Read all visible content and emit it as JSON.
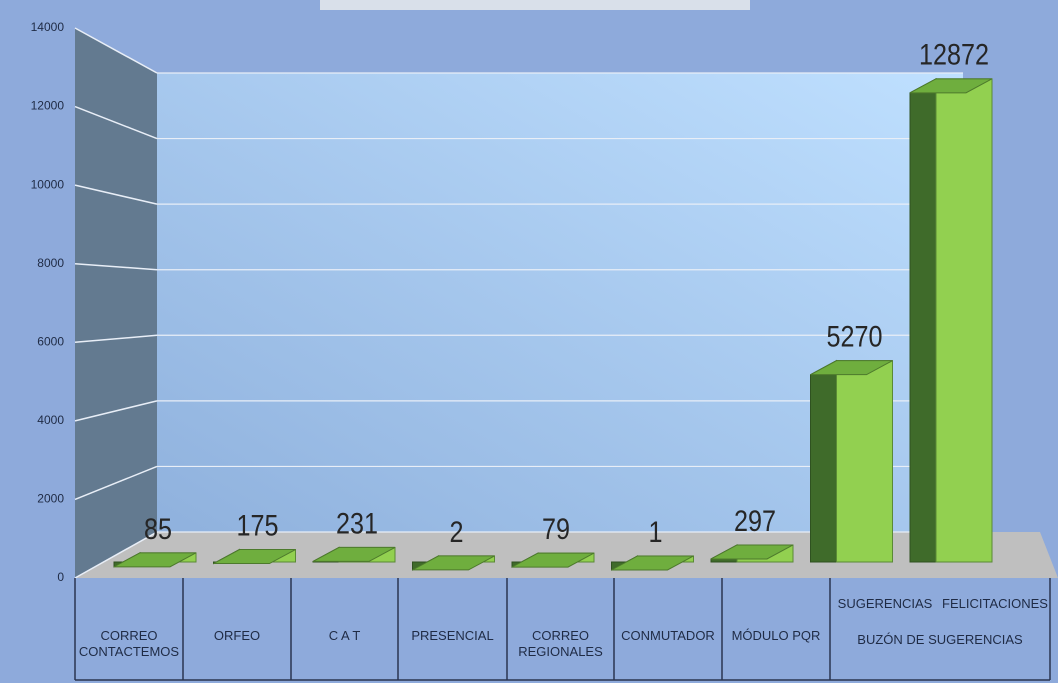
{
  "chart_data": {
    "type": "bar3d",
    "categories": [
      "CORREO CONTACTEMOS",
      "ORFEO",
      "C A T",
      "PRESENCIAL",
      "CORREO REGIONALES",
      "CONMUTADOR",
      "MÓDULO PQR",
      "SUGERENCIAS",
      "FELICITACIONES"
    ],
    "group_label": "BUZÓN DE SUGERENCIAS",
    "values": [
      85,
      175,
      231,
      2,
      79,
      1,
      297,
      5270,
      12872
    ],
    "color": "#92d050",
    "ylim": [
      0,
      14000
    ],
    "yticks": [
      0,
      2000,
      4000,
      6000,
      8000,
      10000,
      12000,
      14000
    ],
    "grid": true
  }
}
